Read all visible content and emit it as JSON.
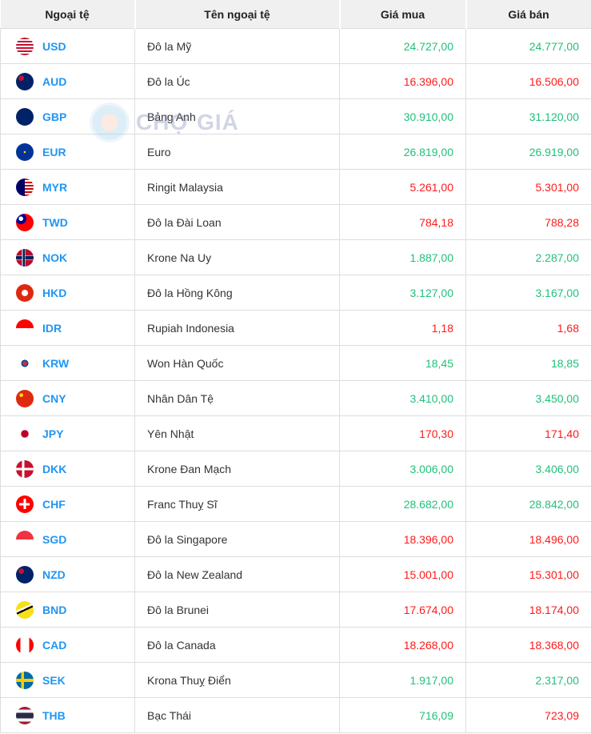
{
  "header": {
    "col_code": "Ngoại tệ",
    "col_name": "Tên ngoại tệ",
    "col_buy": "Giá mua",
    "col_sell": "Giá bán"
  },
  "watermark": "CHỢ GIÁ",
  "colors": {
    "up": "#22c07a",
    "down": "#ff1a1a",
    "code": "#2196f3"
  },
  "rows": [
    {
      "code": "USD",
      "name": "Đô la Mỹ",
      "buy": "24.727,00",
      "sell": "24.777,00",
      "buy_trend": "up",
      "sell_trend": "up",
      "flag": "us-flag"
    },
    {
      "code": "AUD",
      "name": "Đô la Úc",
      "buy": "16.396,00",
      "sell": "16.506,00",
      "buy_trend": "down",
      "sell_trend": "down",
      "flag": "au-flag"
    },
    {
      "code": "GBP",
      "name": "Bảng Anh",
      "buy": "30.910,00",
      "sell": "31.120,00",
      "buy_trend": "up",
      "sell_trend": "up",
      "flag": "gb-flag"
    },
    {
      "code": "EUR",
      "name": "Euro",
      "buy": "26.819,00",
      "sell": "26.919,00",
      "buy_trend": "up",
      "sell_trend": "up",
      "flag": "eu-flag"
    },
    {
      "code": "MYR",
      "name": "Ringit Malaysia",
      "buy": "5.261,00",
      "sell": "5.301,00",
      "buy_trend": "down",
      "sell_trend": "down",
      "flag": "my-flag"
    },
    {
      "code": "TWD",
      "name": "Đô la Đài Loan",
      "buy": "784,18",
      "sell": "788,28",
      "buy_trend": "down",
      "sell_trend": "down",
      "flag": "tw-flag"
    },
    {
      "code": "NOK",
      "name": "Krone Na Uy",
      "buy": "1.887,00",
      "sell": "2.287,00",
      "buy_trend": "up",
      "sell_trend": "up",
      "flag": "no-flag"
    },
    {
      "code": "HKD",
      "name": "Đô la Hồng Kông",
      "buy": "3.127,00",
      "sell": "3.167,00",
      "buy_trend": "up",
      "sell_trend": "up",
      "flag": "hk-flag"
    },
    {
      "code": "IDR",
      "name": "Rupiah Indonesia",
      "buy": "1,18",
      "sell": "1,68",
      "buy_trend": "down",
      "sell_trend": "down",
      "flag": "id-flag"
    },
    {
      "code": "KRW",
      "name": "Won Hàn Quốc",
      "buy": "18,45",
      "sell": "18,85",
      "buy_trend": "up",
      "sell_trend": "up",
      "flag": "kr-flag"
    },
    {
      "code": "CNY",
      "name": "Nhân Dân Tệ",
      "buy": "3.410,00",
      "sell": "3.450,00",
      "buy_trend": "up",
      "sell_trend": "up",
      "flag": "cn-flag"
    },
    {
      "code": "JPY",
      "name": "Yên Nhật",
      "buy": "170,30",
      "sell": "171,40",
      "buy_trend": "down",
      "sell_trend": "down",
      "flag": "jp-flag"
    },
    {
      "code": "DKK",
      "name": "Krone Đan Mạch",
      "buy": "3.006,00",
      "sell": "3.406,00",
      "buy_trend": "up",
      "sell_trend": "up",
      "flag": "dk-flag"
    },
    {
      "code": "CHF",
      "name": "Franc Thuỵ Sĩ",
      "buy": "28.682,00",
      "sell": "28.842,00",
      "buy_trend": "up",
      "sell_trend": "up",
      "flag": "ch-flag"
    },
    {
      "code": "SGD",
      "name": "Đô la Singapore",
      "buy": "18.396,00",
      "sell": "18.496,00",
      "buy_trend": "down",
      "sell_trend": "down",
      "flag": "sg-flag"
    },
    {
      "code": "NZD",
      "name": "Đô la New Zealand",
      "buy": "15.001,00",
      "sell": "15.301,00",
      "buy_trend": "down",
      "sell_trend": "down",
      "flag": "nz-flag"
    },
    {
      "code": "BND",
      "name": "Đô la Brunei",
      "buy": "17.674,00",
      "sell": "18.174,00",
      "buy_trend": "down",
      "sell_trend": "down",
      "flag": "bn-flag"
    },
    {
      "code": "CAD",
      "name": "Đô la Canada",
      "buy": "18.268,00",
      "sell": "18.368,00",
      "buy_trend": "down",
      "sell_trend": "down",
      "flag": "ca-flag"
    },
    {
      "code": "SEK",
      "name": "Krona Thuỵ Điển",
      "buy": "1.917,00",
      "sell": "2.317,00",
      "buy_trend": "up",
      "sell_trend": "up",
      "flag": "se-flag"
    },
    {
      "code": "THB",
      "name": "Bạc Thái",
      "buy": "716,09",
      "sell": "723,09",
      "buy_trend": "up",
      "sell_trend": "down",
      "flag": "th-flag"
    }
  ]
}
